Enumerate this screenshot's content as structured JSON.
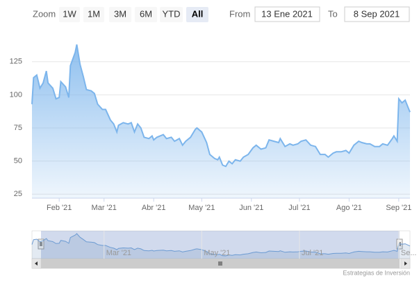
{
  "range_selector": {
    "zoom_label": "Zoom",
    "buttons": [
      "1W",
      "1M",
      "3M",
      "6M",
      "YTD",
      "All"
    ],
    "selected": 5,
    "from_label": "From",
    "from": "13 Ene 2021",
    "to_label": "To",
    "to": "8 Sep 2021"
  },
  "chart_data": {
    "type": "area",
    "x": [
      "2021-01-15",
      "2021-01-16",
      "2021-01-18",
      "2021-01-20",
      "2021-01-22",
      "2021-01-24",
      "2021-01-25",
      "2021-01-28",
      "2021-01-30",
      "2021-02-01",
      "2021-02-02",
      "2021-02-05",
      "2021-02-07",
      "2021-02-08",
      "2021-02-11",
      "2021-02-12",
      "2021-02-14",
      "2021-02-16",
      "2021-02-18",
      "2021-02-21",
      "2021-02-23",
      "2021-02-25",
      "2021-02-28",
      "2021-03-02",
      "2021-03-05",
      "2021-03-07",
      "2021-03-09",
      "2021-03-10",
      "2021-03-13",
      "2021-03-16",
      "2021-03-18",
      "2021-03-20",
      "2021-03-22",
      "2021-03-24",
      "2021-03-26",
      "2021-03-29",
      "2021-03-31",
      "2021-04-01",
      "2021-04-03",
      "2021-04-07",
      "2021-04-09",
      "2021-04-12",
      "2021-04-14",
      "2021-04-17",
      "2021-04-19",
      "2021-04-21",
      "2021-04-24",
      "2021-04-27",
      "2021-04-28",
      "2021-05-01",
      "2021-05-04",
      "2021-05-06",
      "2021-05-09",
      "2021-05-11",
      "2021-05-12",
      "2021-05-14",
      "2021-05-16",
      "2021-05-18",
      "2021-05-20",
      "2021-05-22",
      "2021-05-25",
      "2021-05-27",
      "2021-05-30",
      "2021-06-02",
      "2021-06-04",
      "2021-06-07",
      "2021-06-10",
      "2021-06-12",
      "2021-06-15",
      "2021-06-18",
      "2021-06-19",
      "2021-06-22",
      "2021-06-25",
      "2021-06-27",
      "2021-06-30",
      "2021-07-02",
      "2021-07-05",
      "2021-07-08",
      "2021-07-11",
      "2021-07-14",
      "2021-07-17",
      "2021-07-19",
      "2021-07-22",
      "2021-07-24",
      "2021-07-27",
      "2021-07-30",
      "2021-08-01",
      "2021-08-04",
      "2021-08-07",
      "2021-08-09",
      "2021-08-12",
      "2021-08-14",
      "2021-08-17",
      "2021-08-20",
      "2021-08-22",
      "2021-08-25",
      "2021-08-28",
      "2021-08-29",
      "2021-08-31",
      "2021-09-01",
      "2021-09-03",
      "2021-09-05",
      "2021-09-07",
      "2021-09-08"
    ],
    "series": [
      {
        "color": "#7cb5ec",
        "values": [
          93,
          113,
          115,
          105,
          109,
          118,
          109,
          105,
          97,
          98,
          110,
          106,
          98,
          122,
          132,
          138,
          123,
          114,
          104,
          103,
          101,
          93,
          89,
          89,
          81,
          78,
          72,
          77,
          79,
          78,
          79,
          72,
          78,
          75,
          68,
          67,
          69,
          66,
          68,
          70,
          67,
          68,
          65,
          67,
          62,
          65,
          68,
          74,
          75,
          72,
          64,
          55,
          52,
          51,
          53,
          47,
          46,
          50,
          48,
          51,
          50,
          53,
          55,
          60,
          62,
          59,
          60,
          66,
          65,
          64,
          67,
          61,
          63,
          62,
          63,
          65,
          66,
          62,
          61,
          55,
          55,
          53,
          56,
          57,
          57,
          58,
          56,
          62,
          65,
          64,
          63,
          63,
          61,
          61,
          63,
          62,
          67,
          69,
          65,
          97,
          94,
          96,
          90,
          87
        ]
      }
    ],
    "xlim": [
      "2021-01-15",
      "2021-09-08"
    ],
    "xticks": [
      {
        "value": "2021-02-01",
        "label": "Feb '21"
      },
      {
        "value": "2021-03-01",
        "label": "Mar '21"
      },
      {
        "value": "2021-04-01",
        "label": "Abr '21"
      },
      {
        "value": "2021-05-01",
        "label": "May '21"
      },
      {
        "value": "2021-06-01",
        "label": "Jun '21"
      },
      {
        "value": "2021-07-01",
        "label": "Jul '21"
      },
      {
        "value": "2021-08-01",
        "label": "Ago '21"
      },
      {
        "value": "2021-09-01",
        "label": "Sep '21"
      }
    ],
    "ylim": [
      22,
      148
    ],
    "yticks": [
      25,
      50,
      75,
      100,
      125
    ],
    "grid": true,
    "navigator": {
      "xticks": [
        {
          "value": "2021-03-01",
          "label": "Mar '21"
        },
        {
          "value": "2021-05-01",
          "label": "May '21"
        },
        {
          "value": "2021-07-01",
          "label": "Jul '21"
        },
        {
          "value": "2021-09-01",
          "label": "Se..."
        }
      ]
    }
  },
  "credits": "Estrategias de Inversión"
}
